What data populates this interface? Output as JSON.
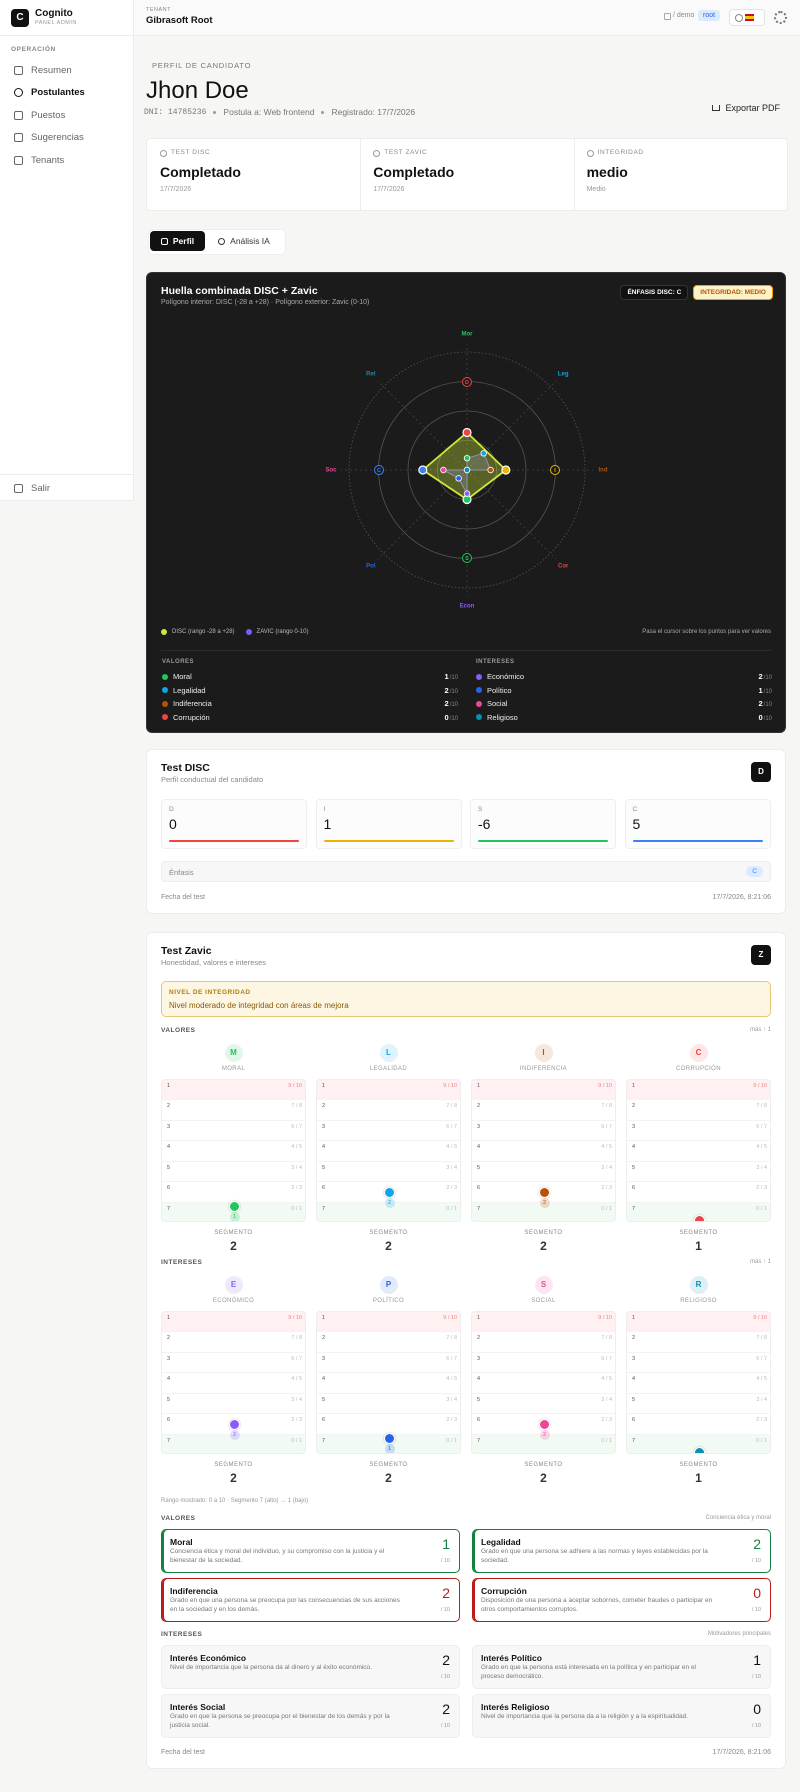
{
  "sidebar": {
    "logo": "C",
    "app": "Cognito",
    "tagline": "PANEL ADMIN",
    "section": "OPERACIÓN",
    "nav": [
      "Resumen",
      "Postulantes",
      "Puestos",
      "Sugerencias",
      "Tenants"
    ],
    "active_nav": 1,
    "logout": "Salir"
  },
  "topbar": {
    "tenant_label": "TENANT",
    "tenant": "Gibrasoft Root",
    "path": "/ demo",
    "user": "root"
  },
  "header": {
    "eyebrow": "PERFIL DE CANDIDATO",
    "name": "Jhon Doe",
    "meta": [
      "DNI: 14785236",
      "Postula a: Web frontend",
      "Registrado: 17/7/2026"
    ],
    "export": "Exportar PDF"
  },
  "status_cards": [
    {
      "label": "TEST DISC",
      "value": "Completado",
      "sub": "17/7/2026"
    },
    {
      "label": "TEST ZAVIC",
      "value": "Completado",
      "sub": "17/7/2026"
    },
    {
      "label": "INTEGRIDAD",
      "value": "medio",
      "sub": "Medio"
    }
  ],
  "tabs": [
    "Perfil",
    "Análisis IA"
  ],
  "active_tab": 0,
  "chart_data": {
    "type": "radar",
    "title": "Huella combinada DISC + Zavic",
    "subtitle": "Polígono interior: DISC (-28 a +28) · Polígono exterior: Zavic (0-10)",
    "badges": [
      "ÉNFASIS DISC: C",
      "INTEGRIDAD: MEDIO"
    ],
    "categories": [
      "Mor",
      "Leg",
      "Ind",
      "Cor",
      "Econ",
      "Pol",
      "Soc",
      "Rel"
    ],
    "category_colors": [
      "#22c55e",
      "#0ea5e9",
      "#b45309",
      "#ef4444",
      "#8b5cf6",
      "#2563eb",
      "#ec4899",
      "#0891b2"
    ],
    "rlim": [
      0,
      10
    ],
    "rticks": [
      2.5,
      5,
      7.5,
      10
    ],
    "series": [
      {
        "name": "ZAVIC (rango 0-10)",
        "color": "#7063f5",
        "values": [
          1,
          2,
          2,
          0,
          2,
          1,
          2,
          0
        ]
      }
    ],
    "disc": {
      "name": "DISC (rango -28 a +28)",
      "color": "#cfe83c",
      "categories": [
        "D",
        "I",
        "S",
        "C"
      ],
      "colors": [
        "#ef4444",
        "#eab308",
        "#22c55e",
        "#3b82f6"
      ],
      "values": [
        0,
        1,
        -6,
        5
      ],
      "rlim": [
        -28,
        28
      ]
    },
    "hint": "Pasa el cursor sobre los puntos para ver valores",
    "list_groups": [
      {
        "title": "VALORES",
        "names": [
          "Moral",
          "Legalidad",
          "Indiferencia",
          "Corrupción"
        ]
      },
      {
        "title": "INTERESES",
        "names": [
          "Económico",
          "Político",
          "Social",
          "Religioso"
        ]
      }
    ],
    "denominator": "/10"
  },
  "disc_card": {
    "title": "Test DISC",
    "subtitle": "Perfil conductual del candidato",
    "badge": "D",
    "emphasis_label": "Énfasis",
    "emphasis": "C",
    "date_label": "Fecha del test",
    "date": "17/7/2026, 8:21:06"
  },
  "zavic": {
    "title": "Test Zavic",
    "subtitle": "Honestidad, valores e intereses",
    "badge": "Z",
    "alert_label": "NIVEL DE INTEGRIDAD",
    "alert_text": "Nivel moderado de integridad con áreas de mejora",
    "groups": [
      {
        "title": "VALORES",
        "legend": "más ↑ 1",
        "items": [
          {
            "letter": "M",
            "name": "MORAL",
            "segment": 2
          },
          {
            "letter": "L",
            "name": "LEGALIDAD",
            "segment": 2
          },
          {
            "letter": "I",
            "name": "INDIFERENCIA",
            "segment": 2
          },
          {
            "letter": "C",
            "name": "CORRUPCIÓN",
            "segment": 1
          }
        ]
      },
      {
        "title": "INTERESES",
        "legend": "más ↑ 1",
        "items": [
          {
            "letter": "E",
            "name": "ECONÓMICO",
            "segment": 2
          },
          {
            "letter": "P",
            "name": "POLÍTICO",
            "segment": 2
          },
          {
            "letter": "S",
            "name": "SOCIAL",
            "segment": 2
          },
          {
            "letter": "R",
            "name": "RELIGIOSO",
            "segment": 1
          }
        ]
      }
    ],
    "scale_rows": [
      {
        "n": 1,
        "range": "9 / 10"
      },
      {
        "n": 2,
        "range": "7 / 8"
      },
      {
        "n": 3,
        "range": "6 / 7"
      },
      {
        "n": 4,
        "range": "4 / 5"
      },
      {
        "n": 5,
        "range": "3 / 4"
      },
      {
        "n": 6,
        "range": "2 / 3"
      },
      {
        "n": 7,
        "range": "0 / 1"
      }
    ],
    "segment_label": "SEGMENTO",
    "range_note": "Rango mostrado: 0 a 10 · Segmento 7 (alto) → 1 (bajo)",
    "detail_groups": [
      {
        "title": "VALORES",
        "note": "Conciencia ética y moral",
        "items": [
          {
            "name": "Moral",
            "desc": "Conciencia ética y moral del individuo, y su compromiso con la justicia y el bienestar de la sociedad.",
            "color": "#15803d"
          },
          {
            "name": "Legalidad",
            "desc": "Grado en que una persona se adhiere a las normas y leyes establecidas por la sociedad.",
            "color": "#15803d"
          },
          {
            "name": "Indiferencia",
            "desc": "Grado en que una persona se preocupa por las consecuencias de sus acciones en la sociedad y en los demás.",
            "color": "#b91c1c"
          },
          {
            "name": "Corrupción",
            "desc": "Disposición de una persona a aceptar sobornos, cometer fraudes o participar en otros comportamientos corruptos.",
            "color": "#b91c1c"
          }
        ]
      },
      {
        "title": "INTERESES",
        "note": "Motivadores principales",
        "items": [
          {
            "name": "Interés Económico",
            "desc": "Nivel de importancia que la persona da al dinero y al éxito económico."
          },
          {
            "name": "Interés Político",
            "desc": "Grado en que la persona está interesada en la política y en participar en el proceso democrático."
          },
          {
            "name": "Interés Social",
            "desc": "Grado en que la persona se preocupa por el bienestar de los demás y por la justicia social."
          },
          {
            "name": "Interés Religioso",
            "desc": "Nivel de importancia que la persona da a la religión y a la espiritualidad."
          }
        ]
      }
    ],
    "denominator": "/ 10",
    "date_label": "Fecha del test",
    "date": "17/7/2026, 8:21:06"
  }
}
